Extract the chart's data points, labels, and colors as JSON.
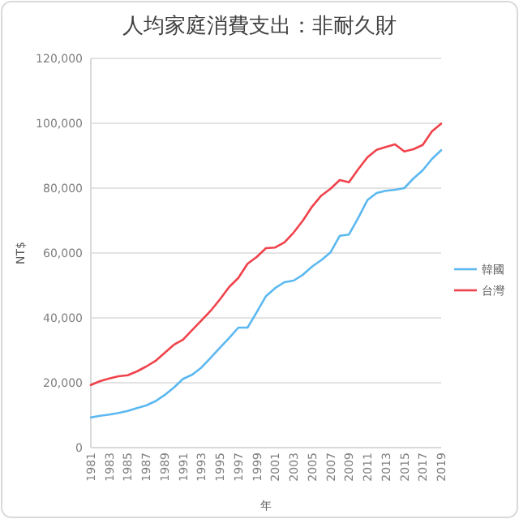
{
  "chart_data": {
    "type": "line",
    "title": "人均家庭消費支出：非耐久財",
    "xlabel": "年",
    "ylabel": "NT$",
    "x": [
      1981,
      1982,
      1983,
      1984,
      1985,
      1986,
      1987,
      1988,
      1989,
      1990,
      1991,
      1992,
      1993,
      1994,
      1995,
      1996,
      1997,
      1998,
      1999,
      2000,
      2001,
      2002,
      2003,
      2004,
      2005,
      2006,
      2007,
      2008,
      2009,
      2010,
      2011,
      2012,
      2013,
      2014,
      2015,
      2016,
      2017,
      2018,
      2019
    ],
    "series": [
      {
        "name": "韓國",
        "color": "#5bb8f0",
        "values": [
          9300,
          9800,
          10200,
          10700,
          11300,
          12200,
          13000,
          14300,
          16200,
          18500,
          21200,
          22500,
          24700,
          27700,
          30800,
          33800,
          37000,
          37000,
          41800,
          46700,
          49200,
          51000,
          51500,
          53300,
          55800,
          57800,
          60200,
          65300,
          65700,
          70800,
          76300,
          78500,
          79200,
          79500,
          80000,
          83000,
          85500,
          89000,
          91700
        ]
      },
      {
        "name": "台灣",
        "color": "#f0424b",
        "values": [
          19300,
          20500,
          21300,
          22000,
          22300,
          23500,
          25000,
          26700,
          29200,
          31700,
          33300,
          36300,
          39200,
          42200,
          45700,
          49500,
          52300,
          56700,
          58800,
          61500,
          61700,
          63300,
          66300,
          70000,
          74300,
          77700,
          79800,
          82500,
          81800,
          85800,
          89500,
          91800,
          92700,
          93500,
          91300,
          92000,
          93300,
          97500,
          99900
        ]
      }
    ],
    "xlim": [
      1981,
      2019
    ],
    "xticks": [
      1981,
      1983,
      1985,
      1987,
      1989,
      1991,
      1993,
      1995,
      1997,
      1999,
      2001,
      2003,
      2005,
      2007,
      2009,
      2011,
      2013,
      2015,
      2017,
      2019
    ],
    "ylim": [
      0,
      120000
    ],
    "yticks": [
      {
        "value": 0,
        "label": "0"
      },
      {
        "value": 20000,
        "label": "20,000"
      },
      {
        "value": 40000,
        "label": "40,000"
      },
      {
        "value": 60000,
        "label": "60,000"
      },
      {
        "value": 80000,
        "label": "80,000"
      },
      {
        "value": 100000,
        "label": "100,000"
      },
      {
        "value": 120000,
        "label": "120,000"
      }
    ],
    "grid": "y",
    "legend": "right",
    "marker": "none",
    "line_style": "solid"
  }
}
